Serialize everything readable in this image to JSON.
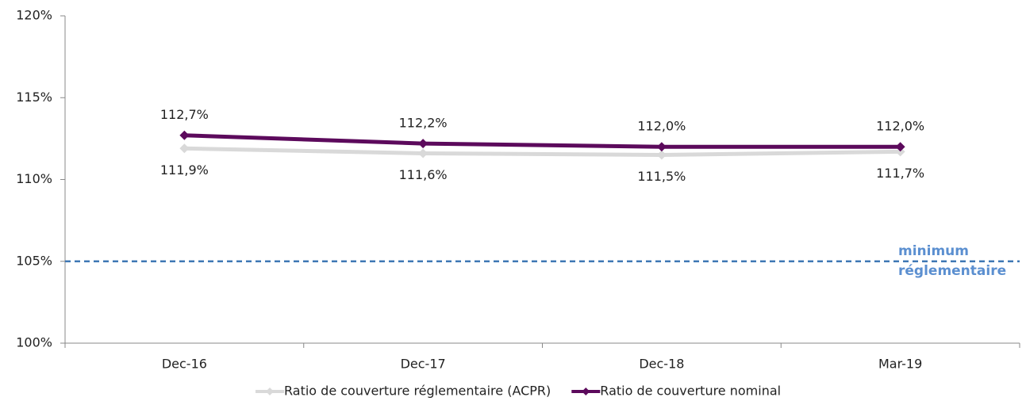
{
  "chart_data": {
    "type": "line",
    "categories": [
      "Dec-16",
      "Dec-17",
      "Dec-18",
      "Mar-19"
    ],
    "series": [
      {
        "name": "Ratio de couverture réglementaire (ACPR)",
        "color": "#d9d9d9",
        "values": [
          111.9,
          111.6,
          111.5,
          111.7
        ],
        "value_labels": [
          "111,9%",
          "111,6%",
          "111,5%",
          "111,7%"
        ]
      },
      {
        "name": "Ratio de couverture nominal",
        "color": "#5c0a5c",
        "values": [
          112.7,
          112.2,
          112.0,
          112.0
        ],
        "value_labels": [
          "112,7%",
          "112,2%",
          "112,0%",
          "112,0%"
        ]
      }
    ],
    "ylim": [
      100,
      120
    ],
    "yticks": [
      {
        "value": 100,
        "label": "100%"
      },
      {
        "value": 105,
        "label": "105%"
      },
      {
        "value": 110,
        "label": "110%"
      },
      {
        "value": 115,
        "label": "115%"
      },
      {
        "value": 120,
        "label": "120%"
      }
    ],
    "reference_line": {
      "value": 105,
      "color": "#3f78b5",
      "label": [
        "minimum",
        "réglementaire"
      ]
    },
    "legend": "bottom"
  }
}
